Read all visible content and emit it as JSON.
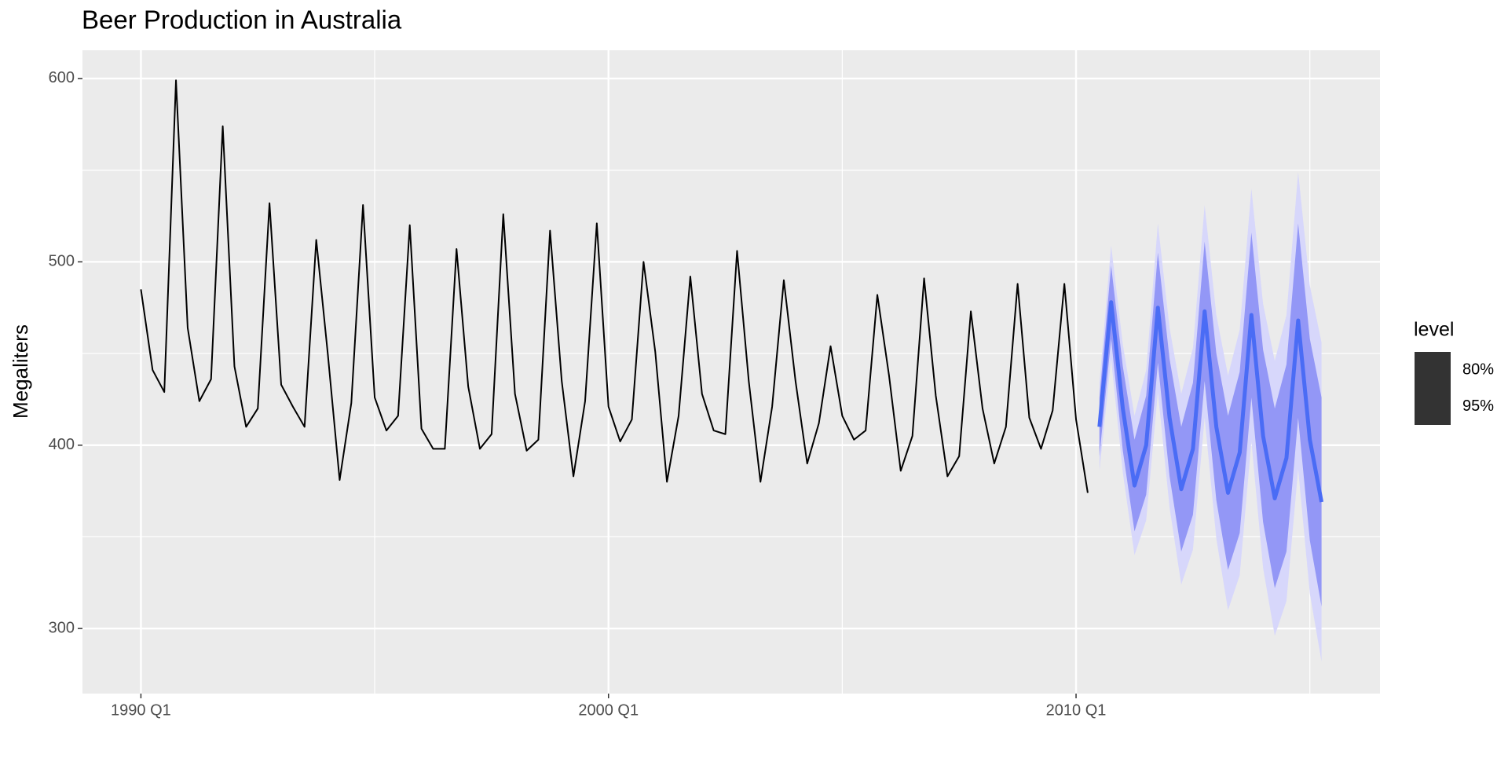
{
  "chart_data": {
    "type": "line",
    "title": "Beer Production in Australia",
    "y_label": "Megaliters",
    "xlim": [
      1988.75,
      2016.5
    ],
    "xticks": [
      {
        "value": 1990,
        "label": "1990 Q1"
      },
      {
        "value": 2000,
        "label": "2000 Q1"
      },
      {
        "value": 2010,
        "label": "2010 Q1"
      }
    ],
    "ylim": [
      264.5,
      615.4
    ],
    "yticks": [
      300,
      400,
      500,
      600
    ],
    "grid": true,
    "actual": {
      "color": "#000000",
      "x": [
        "1990 Q1",
        "1990 Q2",
        "1990 Q3",
        "1990 Q4",
        "1991 Q1",
        "1991 Q2",
        "1991 Q3",
        "1991 Q4",
        "1992 Q1",
        "1992 Q2",
        "1992 Q3",
        "1992 Q4",
        "1993 Q1",
        "1993 Q2",
        "1993 Q3",
        "1993 Q4",
        "1994 Q1",
        "1994 Q2",
        "1994 Q3",
        "1994 Q4",
        "1995 Q1",
        "1995 Q2",
        "1995 Q3",
        "1995 Q4",
        "1996 Q1",
        "1996 Q2",
        "1996 Q3",
        "1996 Q4",
        "1997 Q1",
        "1997 Q2",
        "1997 Q3",
        "1997 Q4",
        "1998 Q1",
        "1998 Q2",
        "1998 Q3",
        "1998 Q4",
        "1999 Q1",
        "1999 Q2",
        "1999 Q3",
        "1999 Q4",
        "2000 Q1",
        "2000 Q2",
        "2000 Q3",
        "2000 Q4",
        "2001 Q1",
        "2001 Q2",
        "2001 Q3",
        "2001 Q4",
        "2002 Q1",
        "2002 Q2",
        "2002 Q3",
        "2002 Q4",
        "2003 Q1",
        "2003 Q2",
        "2003 Q3",
        "2003 Q4",
        "2004 Q1",
        "2004 Q2",
        "2004 Q3",
        "2004 Q4",
        "2005 Q1",
        "2005 Q2",
        "2005 Q3",
        "2005 Q4",
        "2006 Q1",
        "2006 Q2",
        "2006 Q3",
        "2006 Q4",
        "2007 Q1",
        "2007 Q2",
        "2007 Q3",
        "2007 Q4",
        "2008 Q1",
        "2008 Q2",
        "2008 Q3",
        "2008 Q4",
        "2009 Q1",
        "2009 Q2",
        "2009 Q3",
        "2009 Q4",
        "2010 Q1",
        "2010 Q2"
      ],
      "values": [
        485,
        441,
        429,
        599,
        464,
        424,
        436,
        574,
        443,
        410,
        420,
        532,
        433,
        421,
        410,
        512,
        449,
        381,
        423,
        531,
        426,
        408,
        416,
        520,
        409,
        398,
        398,
        507,
        432,
        398,
        406,
        526,
        428,
        397,
        403,
        517,
        435,
        383,
        424,
        521,
        421,
        402,
        414,
        500,
        451,
        380,
        416,
        492,
        428,
        408,
        406,
        506,
        435,
        380,
        421,
        490,
        435,
        390,
        412,
        454,
        416,
        403,
        408,
        482,
        438,
        386,
        405,
        491,
        427,
        383,
        394,
        473,
        420,
        390,
        410,
        488,
        415,
        398,
        419,
        488,
        414,
        374
      ]
    },
    "forecast": {
      "color": "#4a6cf5",
      "x": [
        "2010 Q3",
        "2010 Q4",
        "2011 Q1",
        "2011 Q2",
        "2011 Q3",
        "2011 Q4",
        "2012 Q1",
        "2012 Q2",
        "2012 Q3",
        "2012 Q4",
        "2013 Q1",
        "2013 Q2",
        "2013 Q3",
        "2013 Q4",
        "2014 Q1",
        "2014 Q2",
        "2014 Q3",
        "2014 Q4",
        "2015 Q1",
        "2015 Q2"
      ],
      "values": [
        410,
        478,
        420,
        378,
        400,
        475,
        415,
        376,
        398,
        473,
        410,
        374,
        396,
        471,
        405,
        371,
        393,
        468,
        403,
        369
      ]
    },
    "legend_title": "level",
    "intervals": [
      {
        "level": "95%",
        "color": "#d7d7fb",
        "lower": [
          386,
          447,
          385,
          340,
          359,
          429,
          366,
          324,
          343,
          415,
          349,
          310,
          329,
          402,
          333,
          296,
          315,
          387,
          319,
          282
        ],
        "upper": [
          434,
          509,
          455,
          416,
          441,
          521,
          464,
          428,
          453,
          531,
          471,
          438,
          463,
          540,
          477,
          446,
          471,
          549,
          487,
          456
        ]
      },
      {
        "level": "80%",
        "color": "#9397f6",
        "lower": [
          394,
          458,
          397,
          353,
          373,
          445,
          383,
          342,
          362,
          435,
          370,
          332,
          352,
          426,
          358,
          322,
          342,
          415,
          348,
          312
        ],
        "upper": [
          426,
          498,
          443,
          403,
          427,
          505,
          447,
          410,
          434,
          511,
          450,
          416,
          440,
          516,
          452,
          420,
          444,
          521,
          458,
          426
        ]
      }
    ]
  }
}
